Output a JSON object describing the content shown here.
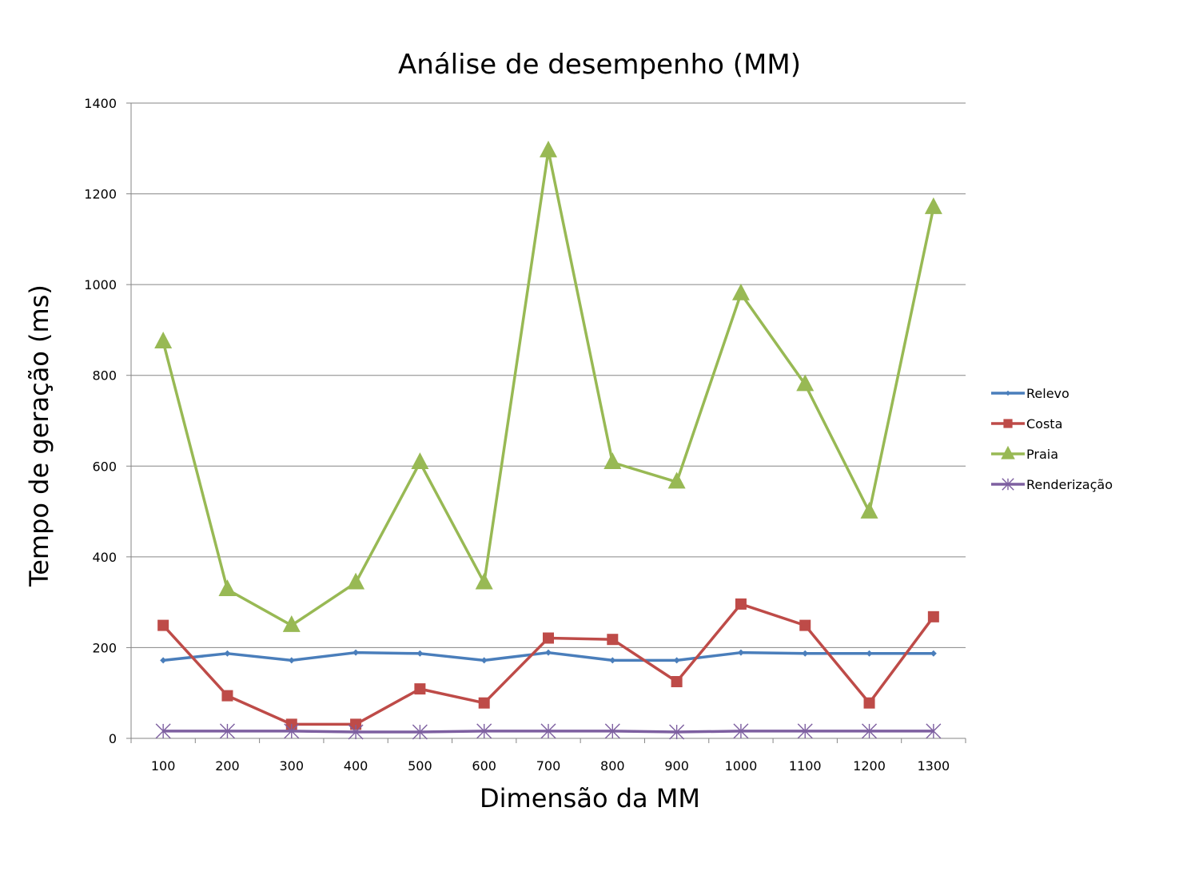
{
  "chart_data": {
    "type": "line",
    "title": "Análise de desempenho (MM)",
    "xlabel": "Dimensão da MM",
    "ylabel": "Tempo de geração (ms)",
    "categories": [
      "100",
      "200",
      "300",
      "400",
      "500",
      "600",
      "700",
      "800",
      "900",
      "1000",
      "1100",
      "1200",
      "1300"
    ],
    "ylim": [
      0,
      1400
    ],
    "yticks": [
      0,
      200,
      400,
      600,
      800,
      1000,
      1200,
      1400
    ],
    "grid": true,
    "legend_position": "right",
    "series": [
      {
        "name": "Relevo",
        "color": "#4a7ebb",
        "marker": "diamond",
        "values": [
          172,
          187,
          172,
          189,
          187,
          172,
          189,
          172,
          172,
          189,
          187,
          187,
          187
        ]
      },
      {
        "name": "Costa",
        "color": "#be4b48",
        "marker": "square",
        "values": [
          249,
          94,
          31,
          31,
          109,
          78,
          221,
          218,
          125,
          296,
          249,
          78,
          268
        ]
      },
      {
        "name": "Praia",
        "color": "#98b954",
        "marker": "triangle",
        "values": [
          874,
          328,
          249,
          343,
          608,
          343,
          1295,
          608,
          565,
          980,
          780,
          499,
          1170
        ]
      },
      {
        "name": "Renderização",
        "color": "#7d5fa0",
        "marker": "star",
        "values": [
          16,
          16,
          16,
          14,
          14,
          16,
          16,
          16,
          14,
          16,
          16,
          16,
          16
        ]
      }
    ]
  }
}
